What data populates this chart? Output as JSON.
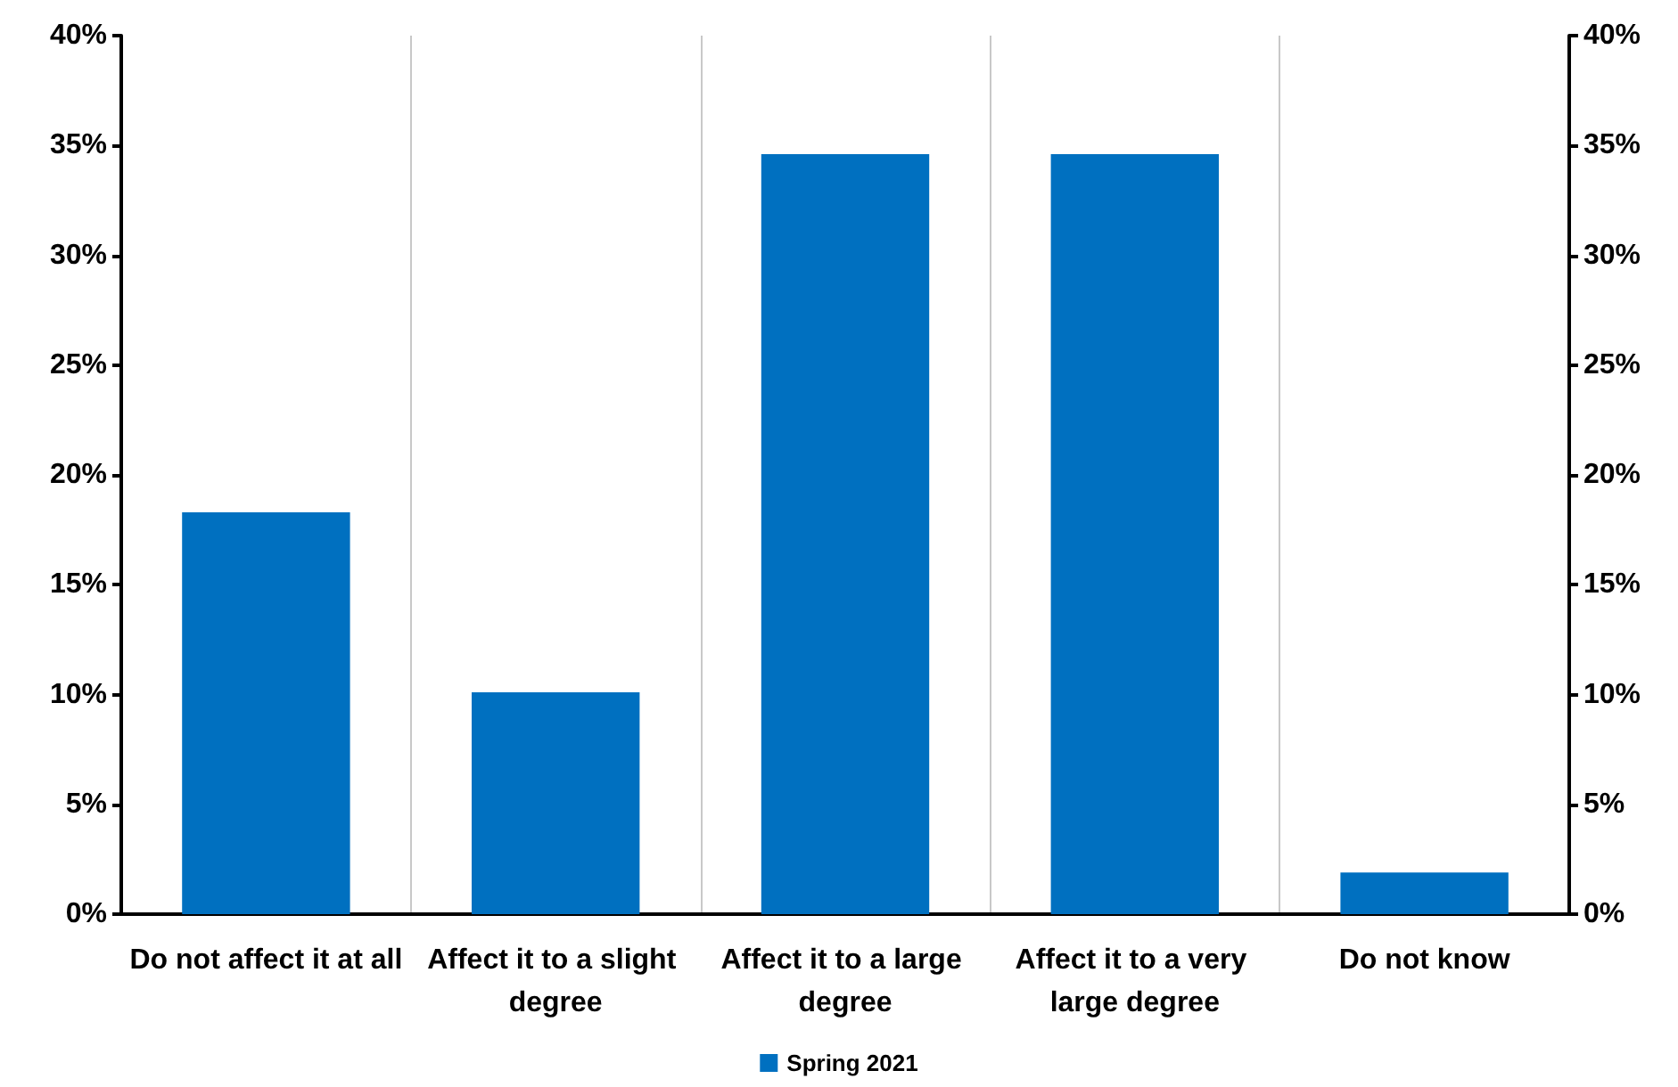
{
  "chart_data": {
    "type": "bar",
    "categories": [
      "Do not affect it at all",
      "Affect it to a slight degree",
      "Affect it to a large degree",
      "Affect it to a very large degree",
      "Do not know"
    ],
    "series": [
      {
        "name": "Spring 2021",
        "color": "#0070c0",
        "values": [
          18.3,
          10.1,
          34.6,
          34.6,
          1.9
        ]
      }
    ],
    "ylim": [
      0,
      40
    ],
    "yticks": [
      {
        "value": 0,
        "label": "0%"
      },
      {
        "value": 5,
        "label": "5%"
      },
      {
        "value": 10,
        "label": "10%"
      },
      {
        "value": 15,
        "label": "15%"
      },
      {
        "value": 20,
        "label": "20%"
      },
      {
        "value": 25,
        "label": "25%"
      },
      {
        "value": 30,
        "label": "30%"
      },
      {
        "value": 35,
        "label": "35%"
      },
      {
        "value": 40,
        "label": "40%"
      }
    ],
    "y2lim": [
      0,
      40
    ],
    "y2ticks": [
      {
        "value": 0,
        "label": "0%"
      },
      {
        "value": 5,
        "label": "5%"
      },
      {
        "value": 10,
        "label": "10%"
      },
      {
        "value": 15,
        "label": "15%"
      },
      {
        "value": 20,
        "label": "20%"
      },
      {
        "value": 25,
        "label": "25%"
      },
      {
        "value": 30,
        "label": "30%"
      },
      {
        "value": 35,
        "label": "35%"
      },
      {
        "value": 40,
        "label": "40%"
      }
    ],
    "grid": "x",
    "legend": "bottom"
  }
}
